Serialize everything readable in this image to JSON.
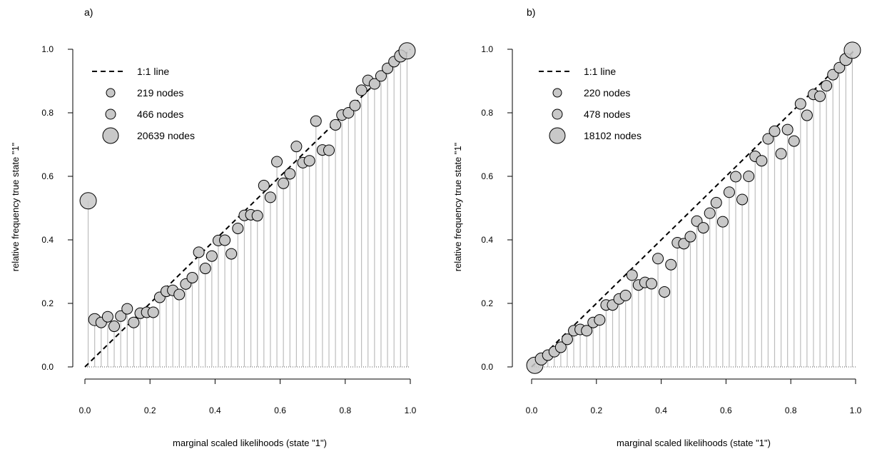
{
  "chart_data": [
    {
      "type": "scatter",
      "panel_label": "a)",
      "xlabel": "marginal scaled likelihoods (state \"1\")",
      "ylabel": "relative frequency true state \"1\"",
      "xlim": [
        0,
        1
      ],
      "ylim": [
        0,
        1
      ],
      "x_ticks": [
        "0.0",
        "0.2",
        "0.4",
        "0.6",
        "0.8",
        "1.0"
      ],
      "y_ticks": [
        "0.0",
        "0.2",
        "0.4",
        "0.6",
        "0.8",
        "1.0"
      ],
      "grid": false,
      "legend_position": "top-left",
      "legend": [
        {
          "label": "1:1 line",
          "kind": "line"
        },
        {
          "label": "219 nodes",
          "kind": "point",
          "size": "small"
        },
        {
          "label": "466 nodes",
          "kind": "point",
          "size": "medium"
        },
        {
          "label": "20639 nodes",
          "kind": "point",
          "size": "large"
        }
      ],
      "reference_line": {
        "name": "1:1 line",
        "x": [
          0,
          1
        ],
        "y": [
          0,
          1
        ]
      },
      "x": [
        0.01,
        0.03,
        0.05,
        0.07,
        0.09,
        0.11,
        0.13,
        0.15,
        0.17,
        0.19,
        0.21,
        0.23,
        0.25,
        0.27,
        0.29,
        0.31,
        0.33,
        0.35,
        0.37,
        0.39,
        0.41,
        0.43,
        0.45,
        0.47,
        0.49,
        0.51,
        0.53,
        0.55,
        0.57,
        0.59,
        0.61,
        0.63,
        0.65,
        0.67,
        0.69,
        0.71,
        0.73,
        0.75,
        0.77,
        0.79,
        0.81,
        0.83,
        0.85,
        0.87,
        0.89,
        0.91,
        0.93,
        0.95,
        0.97,
        0.99
      ],
      "y": [
        0.523,
        0.149,
        0.14,
        0.158,
        0.128,
        0.16,
        0.183,
        0.14,
        0.169,
        0.172,
        0.172,
        0.219,
        0.238,
        0.241,
        0.228,
        0.261,
        0.281,
        0.361,
        0.31,
        0.349,
        0.398,
        0.399,
        0.356,
        0.436,
        0.477,
        0.479,
        0.476,
        0.571,
        0.534,
        0.646,
        0.578,
        0.608,
        0.694,
        0.643,
        0.649,
        0.774,
        0.683,
        0.682,
        0.762,
        0.793,
        0.8,
        0.823,
        0.871,
        0.902,
        0.891,
        0.916,
        0.94,
        0.961,
        0.979,
        0.995
      ],
      "point_size": [
        3,
        2,
        1,
        1,
        1,
        1,
        1,
        1,
        1,
        1,
        1,
        1,
        1,
        1,
        1,
        1,
        1,
        1,
        1,
        1,
        1,
        1,
        1,
        1,
        1,
        1,
        1,
        1,
        1,
        1,
        1,
        1,
        1,
        1,
        1,
        1,
        1,
        1,
        1,
        1,
        1,
        1,
        1,
        1,
        1,
        1,
        1,
        1,
        2,
        3
      ]
    },
    {
      "type": "scatter",
      "panel_label": "b)",
      "xlabel": "marginal scaled likelihoods (state \"1\")",
      "ylabel": "relative frequency true state \"1\"",
      "xlim": [
        0,
        1
      ],
      "ylim": [
        0,
        1
      ],
      "x_ticks": [
        "0.0",
        "0.2",
        "0.4",
        "0.6",
        "0.8",
        "1.0"
      ],
      "y_ticks": [
        "0.0",
        "0.2",
        "0.4",
        "0.6",
        "0.8",
        "1.0"
      ],
      "grid": false,
      "legend_position": "top-left",
      "legend": [
        {
          "label": "1:1 line",
          "kind": "line"
        },
        {
          "label": "220 nodes",
          "kind": "point",
          "size": "small"
        },
        {
          "label": "478 nodes",
          "kind": "point",
          "size": "medium"
        },
        {
          "label": "18102 nodes",
          "kind": "point",
          "size": "large"
        }
      ],
      "reference_line": {
        "name": "1:1 line",
        "x": [
          0,
          1
        ],
        "y": [
          0,
          1
        ]
      },
      "x": [
        0.01,
        0.03,
        0.05,
        0.07,
        0.09,
        0.11,
        0.13,
        0.15,
        0.17,
        0.19,
        0.21,
        0.23,
        0.25,
        0.27,
        0.29,
        0.31,
        0.33,
        0.35,
        0.37,
        0.39,
        0.41,
        0.43,
        0.45,
        0.47,
        0.49,
        0.51,
        0.53,
        0.55,
        0.57,
        0.59,
        0.61,
        0.63,
        0.65,
        0.67,
        0.69,
        0.71,
        0.73,
        0.75,
        0.77,
        0.79,
        0.81,
        0.83,
        0.85,
        0.87,
        0.89,
        0.91,
        0.93,
        0.95,
        0.97,
        0.99
      ],
      "y": [
        0.005,
        0.025,
        0.037,
        0.048,
        0.062,
        0.087,
        0.114,
        0.118,
        0.114,
        0.14,
        0.148,
        0.195,
        0.195,
        0.214,
        0.225,
        0.289,
        0.258,
        0.266,
        0.262,
        0.341,
        0.236,
        0.322,
        0.391,
        0.388,
        0.41,
        0.459,
        0.438,
        0.484,
        0.517,
        0.457,
        0.55,
        0.599,
        0.527,
        0.6,
        0.663,
        0.649,
        0.718,
        0.742,
        0.671,
        0.747,
        0.711,
        0.828,
        0.792,
        0.858,
        0.852,
        0.885,
        0.92,
        0.942,
        0.968,
        0.997
      ],
      "point_size": [
        3,
        2,
        1,
        1,
        1,
        1,
        1,
        1,
        1,
        1,
        1,
        1,
        1,
        1,
        1,
        1,
        1,
        1,
        1,
        1,
        1,
        1,
        1,
        1,
        1,
        1,
        1,
        1,
        1,
        1,
        1,
        1,
        1,
        1,
        1,
        1,
        1,
        1,
        1,
        1,
        1,
        1,
        1,
        1,
        1,
        1,
        1,
        1,
        2,
        3
      ]
    }
  ]
}
